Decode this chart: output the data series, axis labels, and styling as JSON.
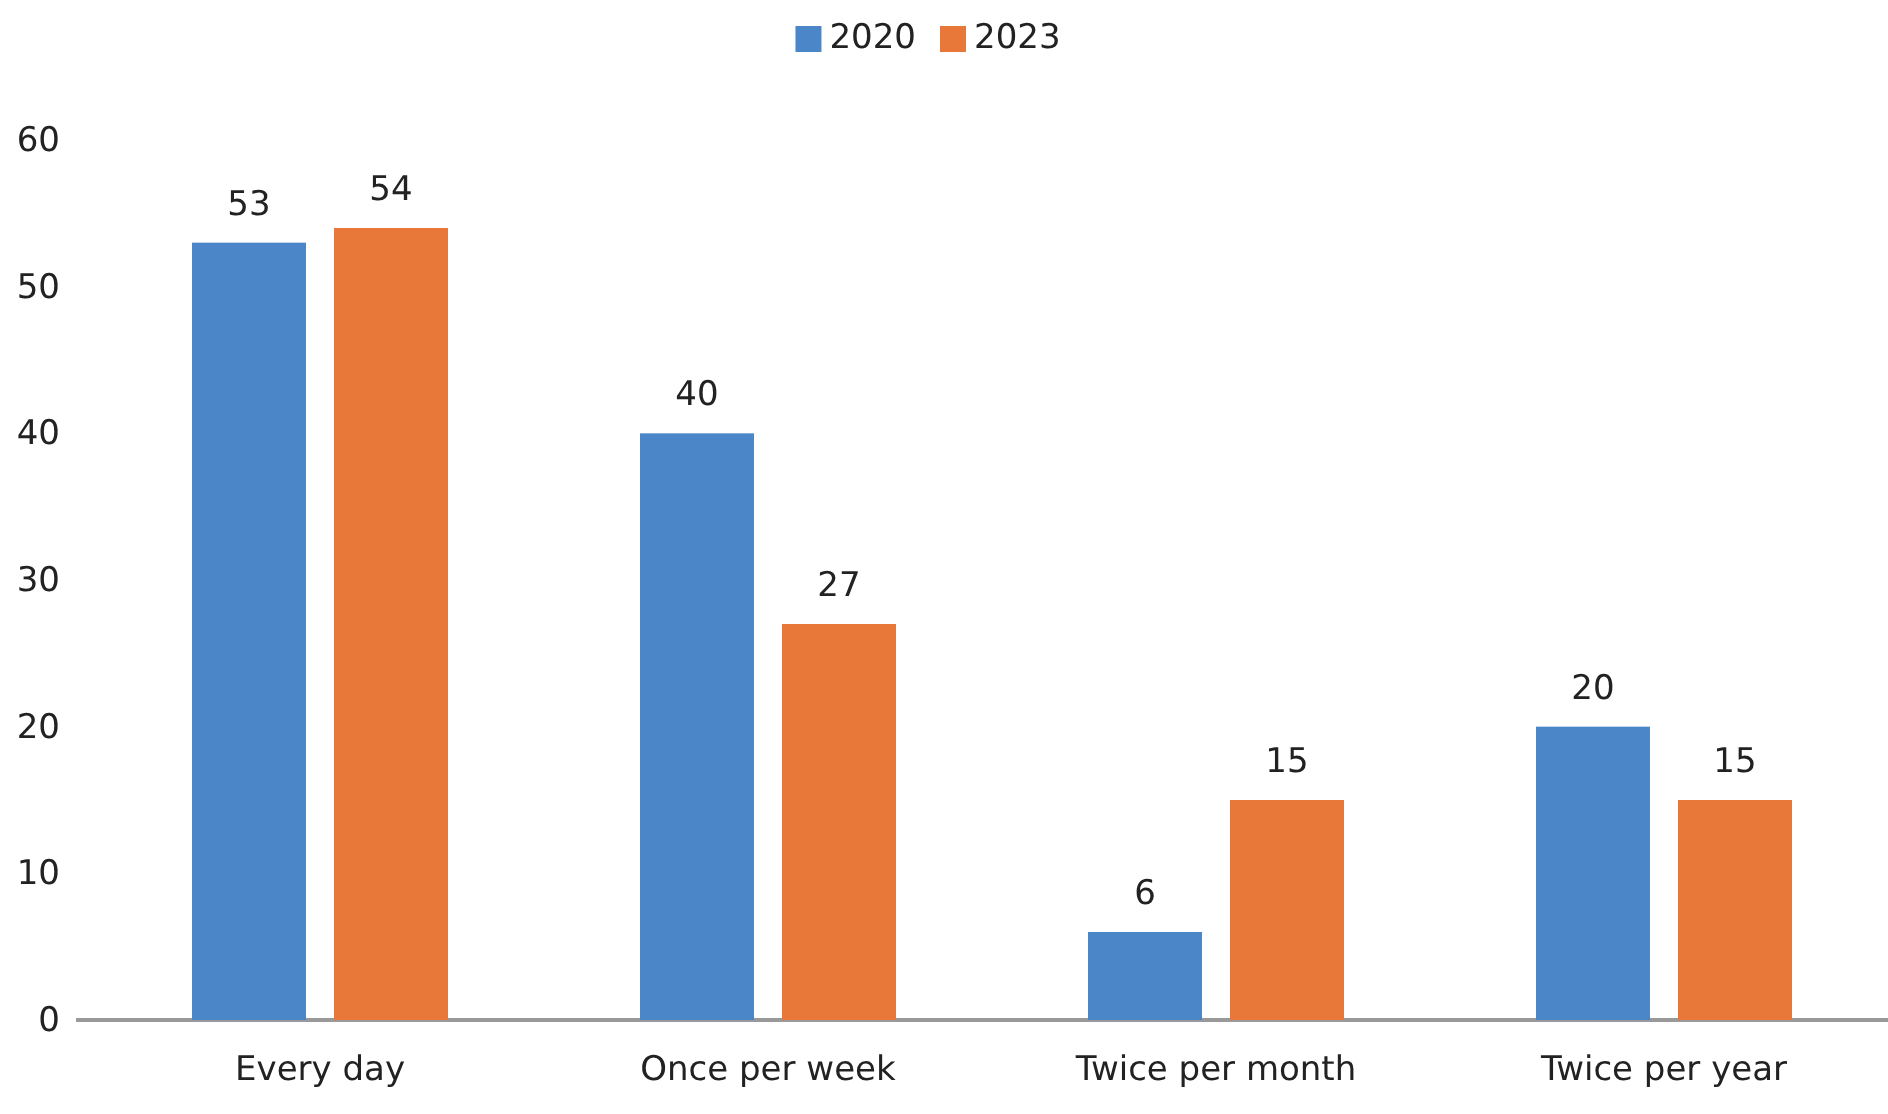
{
  "chart_data": {
    "type": "bar",
    "categories": [
      "Every day",
      "Once per week",
      "Twice per month",
      "Twice per year"
    ],
    "series": [
      {
        "name": "2020",
        "color": "#4a86c8",
        "values": [
          53,
          40,
          6,
          20
        ]
      },
      {
        "name": "2023",
        "color": "#e8773a",
        "values": [
          54,
          27,
          15,
          15
        ]
      }
    ],
    "ylim": [
      0,
      60
    ],
    "yticks": [
      0,
      10,
      20,
      30,
      40,
      50,
      60
    ],
    "grid": false,
    "legend": "top",
    "data_labels": true
  }
}
